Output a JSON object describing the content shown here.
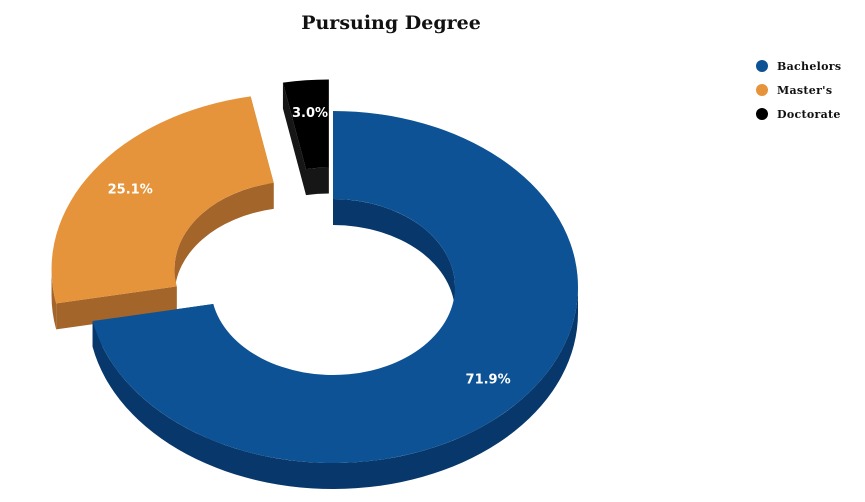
{
  "chart_data": {
    "type": "pie",
    "title": "Pursuing Degree",
    "donut": true,
    "three_d": true,
    "legend_position": "top-right",
    "slices": [
      {
        "label": "Bachelors",
        "value": 71.9,
        "value_label": "71.9%",
        "color": "#0d5294",
        "side_color": "#08386b",
        "exploded": false
      },
      {
        "label": "Master's",
        "value": 25.1,
        "value_label": "25.1%",
        "color": "#e6943b",
        "side_color": "#a3652a",
        "exploded": true
      },
      {
        "label": "Doctorate",
        "value": 3.0,
        "value_label": "3.0%",
        "color": "#000000",
        "side_color": "#161616",
        "exploded": true
      }
    ]
  }
}
